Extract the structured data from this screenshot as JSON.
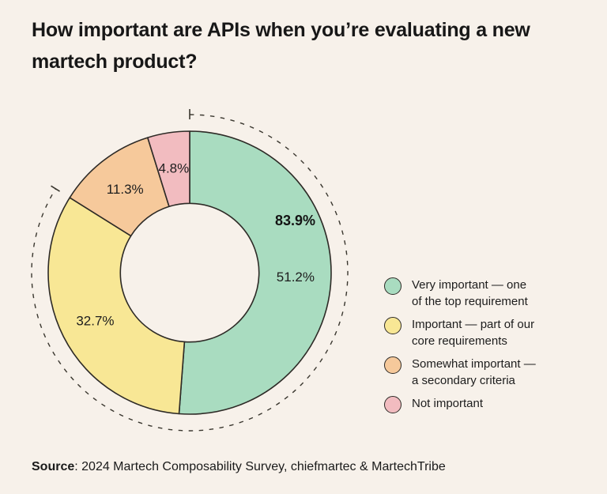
{
  "title": "How important are APIs when you’re evaluating a new martech product?",
  "chart_data": {
    "type": "pie",
    "subtype": "donut",
    "title": "How important are APIs when you’re evaluating a new martech product?",
    "categories": [
      "Very important — one of the top requirement",
      "Important — part of our core requirements",
      "Somewhat important — a secondary criteria",
      "Not important"
    ],
    "values": [
      51.2,
      32.7,
      11.3,
      4.8
    ],
    "labels": [
      "51.2%",
      "32.7%",
      "11.3%",
      "4.8%"
    ],
    "colors": [
      "#a9dcc0",
      "#f8e795",
      "#f6c99b",
      "#f2bcc0"
    ],
    "stroke_color": "#2d2a26",
    "start_angle_deg": 0,
    "direction": "clockwise",
    "inner_radius_ratio": 0.49,
    "legend_position": "right",
    "annotation": {
      "label": "83.9%",
      "value": 83.9
    },
    "legend": {
      "entries": [
        {
          "lines": [
            "Very important — one",
            "of the top requirement"
          ],
          "color": "#a9dcc0"
        },
        {
          "lines": [
            "Important — part of our",
            "core requirements"
          ],
          "color": "#f8e795"
        },
        {
          "lines": [
            "Somewhat important —",
            "a secondary criteria"
          ],
          "color": "#f6c99b"
        },
        {
          "lines": [
            "Not important"
          ],
          "color": "#f2bcc0"
        }
      ]
    }
  },
  "source": {
    "label": "Source",
    "text": ": 2024 Martech Composability Survey, chiefmartec & MartechTribe"
  }
}
